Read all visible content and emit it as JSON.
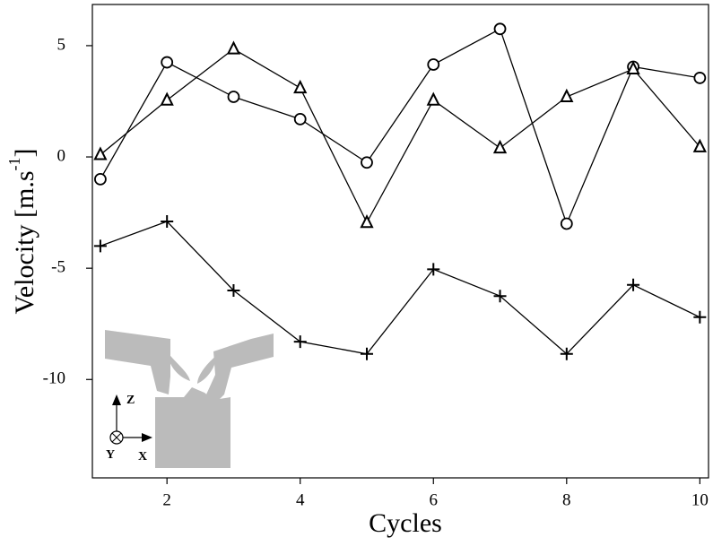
{
  "chart_data": {
    "type": "line",
    "xlabel": "Cycles",
    "ylabel": [
      "Velocity [m.s",
      "-1",
      "]"
    ],
    "x": [
      1,
      2,
      3,
      4,
      5,
      6,
      7,
      8,
      9,
      10
    ],
    "series": [
      {
        "marker": "circle",
        "color": "#000000",
        "values": [
          -1.0,
          4.25,
          2.7,
          1.7,
          -0.25,
          4.15,
          5.75,
          -3.0,
          4.05,
          3.55
        ]
      },
      {
        "marker": "triangle",
        "color": "#000000",
        "values": [
          0.1,
          2.55,
          4.85,
          3.1,
          -2.95,
          2.55,
          0.4,
          2.7,
          3.95,
          0.45
        ]
      },
      {
        "marker": "plus",
        "color": "#000000",
        "values": [
          -4.0,
          -2.9,
          -6.0,
          -8.3,
          -8.85,
          -5.05,
          -6.25,
          -8.85,
          -5.75,
          -7.2
        ]
      }
    ],
    "xlim": [
      0.88,
      10.13
    ],
    "xticks": [
      2,
      4,
      6,
      8,
      10
    ],
    "ylim": [
      -14.42,
      6.85
    ],
    "yticks": [
      5,
      0,
      -5,
      -10
    ],
    "annotations": [
      "Z",
      "X",
      "Y"
    ]
  }
}
